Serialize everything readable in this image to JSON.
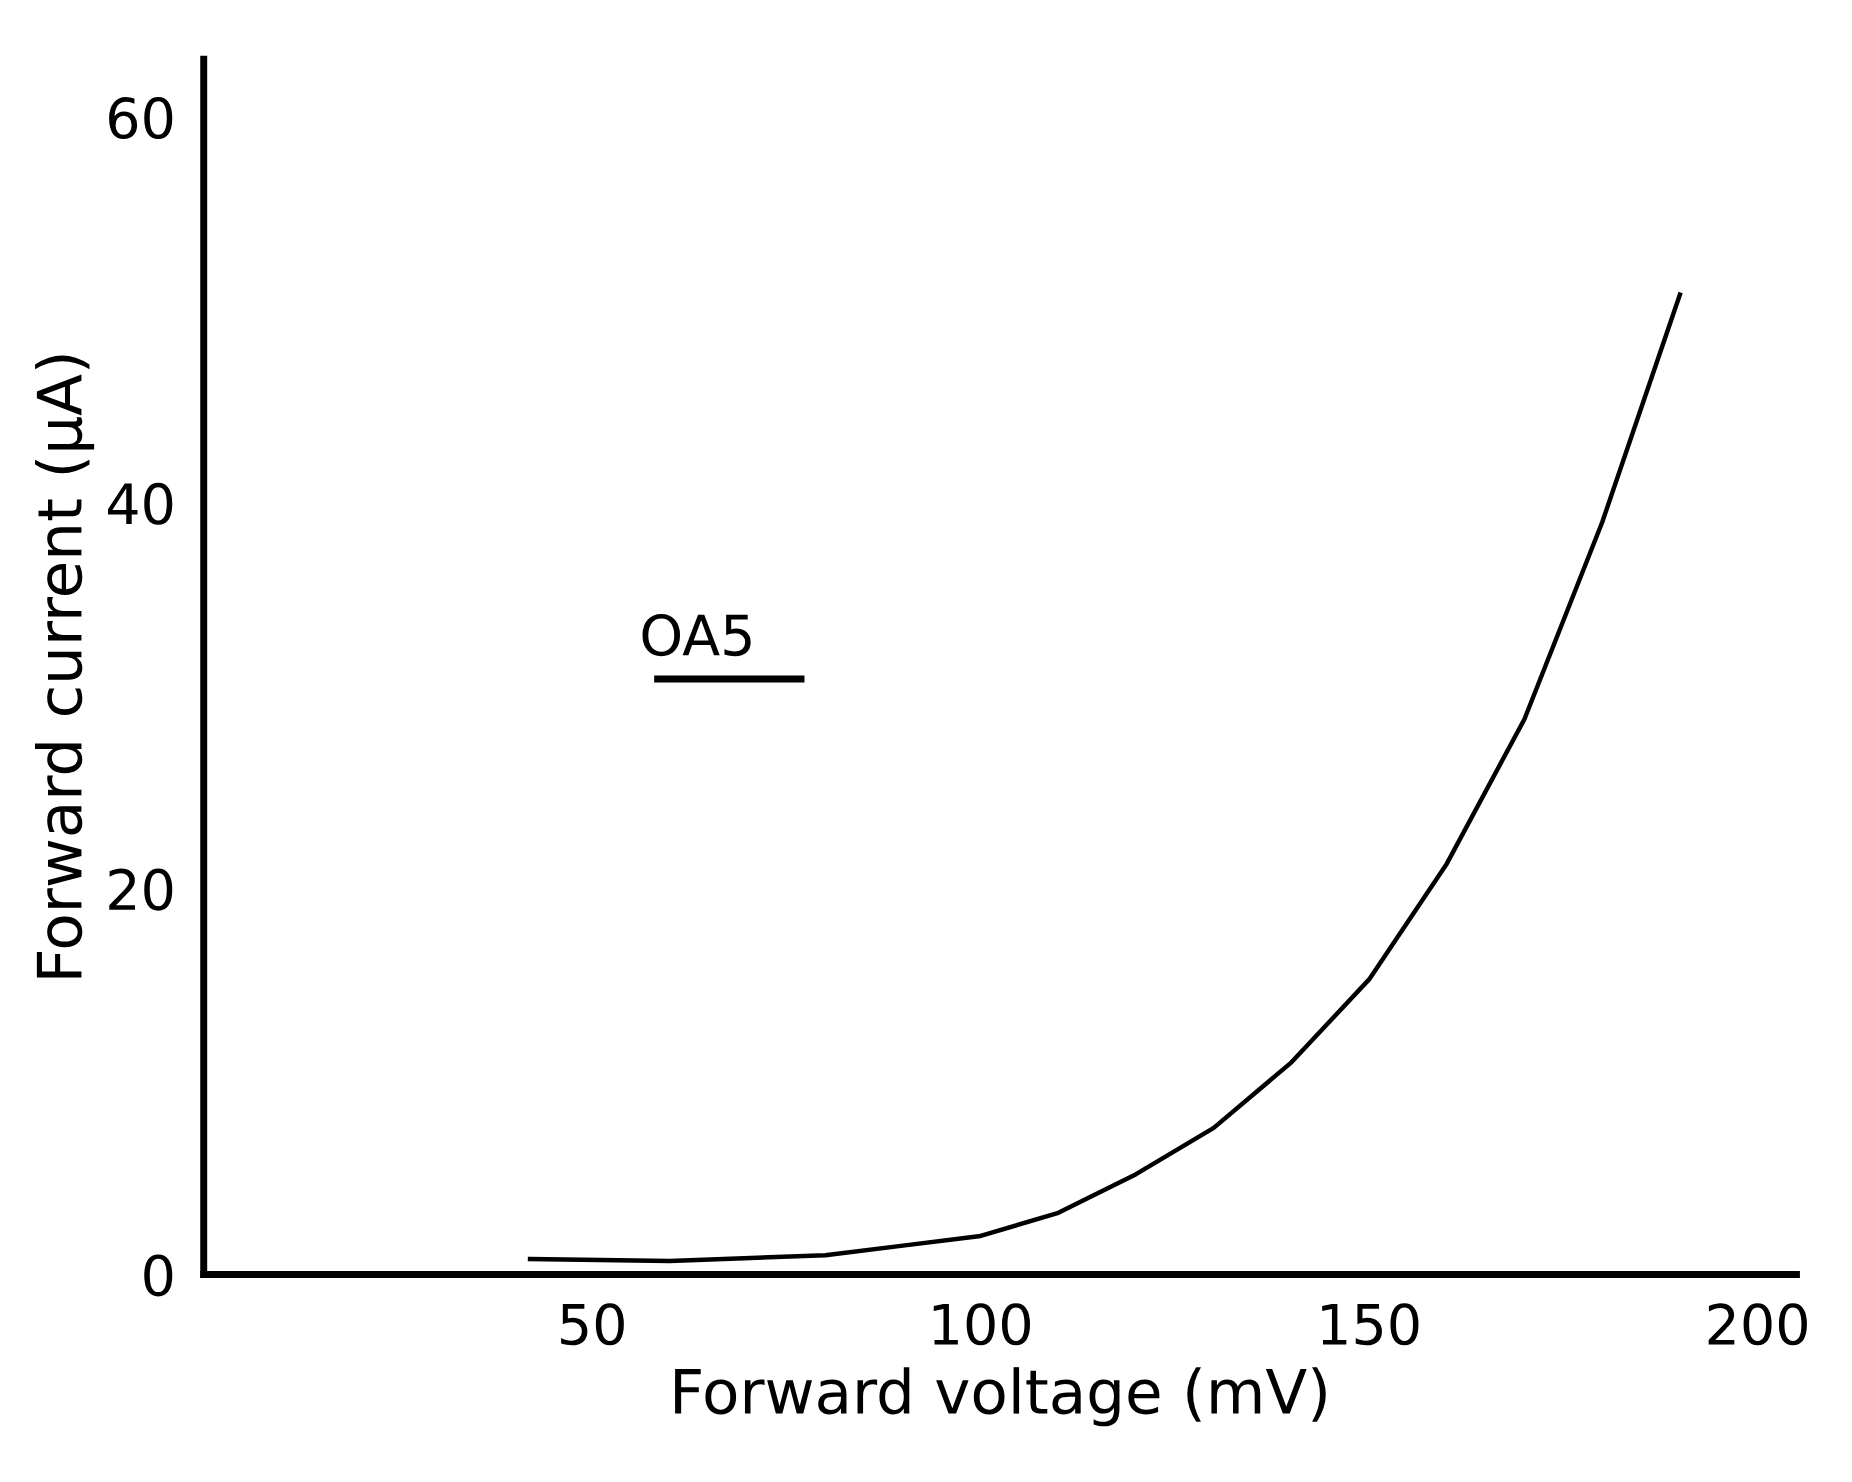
{
  "chart_data": {
    "type": "line",
    "xlabel": "Forward voltage (mV)",
    "ylabel": "Forward current (μA)",
    "annotations": [
      "OA5"
    ],
    "x": [
      42,
      60,
      80,
      90,
      100,
      110,
      120,
      130,
      140,
      150,
      160,
      170,
      180,
      190
    ],
    "series": [
      {
        "color": "#000000",
        "values": [
          0.8,
          0.7,
          1.0,
          1.5,
          2.0,
          3.2,
          5.2,
          7.6,
          11,
          15.3,
          21.3,
          28.8,
          39,
          50.8
        ]
      }
    ],
    "xlim": [
      0,
      205
    ],
    "ylim": [
      0,
      63
    ],
    "xticks": [
      50,
      100,
      150,
      200
    ],
    "yticks": [
      0,
      20,
      40,
      60
    ],
    "grid": false,
    "legend": false,
    "marker": "none",
    "line_style": "solid"
  }
}
